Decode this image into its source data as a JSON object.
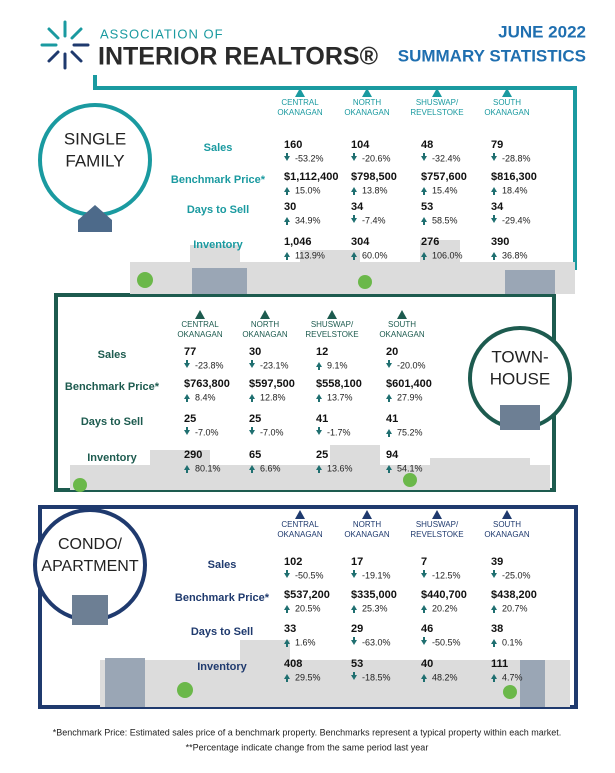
{
  "header": {
    "org_line1": "ASSOCIATION OF",
    "org_line2": "INTERIOR REALTORS®",
    "title_line1": "JUNE 2022",
    "title_line2": "SUMMARY STATISTICS"
  },
  "sections": [
    {
      "label": [
        "SINGLE",
        "FAMILY"
      ],
      "regions": [
        [
          "CENTRAL",
          "OKANAGAN"
        ],
        [
          "NORTH",
          "OKANAGAN"
        ],
        [
          "SHUSWAP/",
          "REVELSTOKE"
        ],
        [
          "SOUTH",
          "OKANAGAN"
        ]
      ],
      "rows": [
        {
          "name": "Sales",
          "cells": [
            {
              "value": "160",
              "change": "-53.2%"
            },
            {
              "value": "104",
              "change": "-20.6%"
            },
            {
              "value": "48",
              "change": "-32.4%"
            },
            {
              "value": "79",
              "change": "-28.8%"
            }
          ]
        },
        {
          "name": "Benchmark Price*",
          "cells": [
            {
              "value": "$1,112,400",
              "change": "15.0%"
            },
            {
              "value": "$798,500",
              "change": "13.8%"
            },
            {
              "value": "$757,600",
              "change": "15.4%"
            },
            {
              "value": "$816,300",
              "change": "18.4%"
            }
          ]
        },
        {
          "name": "Days to Sell",
          "cells": [
            {
              "value": "30",
              "change": "34.9%"
            },
            {
              "value": "34",
              "change": "-7.4%"
            },
            {
              "value": "53",
              "change": "58.5%"
            },
            {
              "value": "34",
              "change": "-29.4%"
            }
          ]
        },
        {
          "name": "Inventory",
          "cells": [
            {
              "value": "1,046",
              "change": "113.9%"
            },
            {
              "value": "304",
              "change": "60.0%"
            },
            {
              "value": "276",
              "change": "106.0%"
            },
            {
              "value": "390",
              "change": "36.8%"
            }
          ]
        }
      ]
    },
    {
      "label": [
        "TOWN-",
        "HOUSE"
      ],
      "regions": [
        [
          "CENTRAL",
          "OKANAGAN"
        ],
        [
          "NORTH",
          "OKANAGAN"
        ],
        [
          "SHUSWAP/",
          "REVELSTOKE"
        ],
        [
          "SOUTH",
          "OKANAGAN"
        ]
      ],
      "rows": [
        {
          "name": "Sales",
          "cells": [
            {
              "value": "77",
              "change": "-23.8%"
            },
            {
              "value": "30",
              "change": "-23.1%"
            },
            {
              "value": "12",
              "change": "9.1%"
            },
            {
              "value": "20",
              "change": "-20.0%"
            }
          ]
        },
        {
          "name": "Benchmark Price*",
          "cells": [
            {
              "value": "$763,800",
              "change": "8.4%"
            },
            {
              "value": "$597,500",
              "change": "12.8%"
            },
            {
              "value": "$558,100",
              "change": "13.7%"
            },
            {
              "value": "$601,400",
              "change": "27.9%"
            }
          ]
        },
        {
          "name": "Days to Sell",
          "cells": [
            {
              "value": "25",
              "change": "-7.0%"
            },
            {
              "value": "25",
              "change": "-7.0%"
            },
            {
              "value": "41",
              "change": "-1.7%"
            },
            {
              "value": "41",
              "change": "75.2%"
            }
          ]
        },
        {
          "name": "Inventory",
          "cells": [
            {
              "value": "290",
              "change": "80.1%"
            },
            {
              "value": "65",
              "change": "6.6%"
            },
            {
              "value": "25",
              "change": "13.6%"
            },
            {
              "value": "94",
              "change": "54.1%"
            }
          ]
        }
      ]
    },
    {
      "label": [
        "CONDO/",
        "APARTMENT"
      ],
      "regions": [
        [
          "CENTRAL",
          "OKANAGAN"
        ],
        [
          "NORTH",
          "OKANAGAN"
        ],
        [
          "SHUSWAP/",
          "REVELSTOKE"
        ],
        [
          "SOUTH",
          "OKANAGAN"
        ]
      ],
      "rows": [
        {
          "name": "Sales",
          "cells": [
            {
              "value": "102",
              "change": "-50.5%"
            },
            {
              "value": "17",
              "change": "-19.1%"
            },
            {
              "value": "7",
              "change": "-12.5%"
            },
            {
              "value": "39",
              "change": "-25.0%"
            }
          ]
        },
        {
          "name": "Benchmark Price*",
          "cells": [
            {
              "value": "$537,200",
              "change": "20.5%"
            },
            {
              "value": "$335,000",
              "change": "25.3%"
            },
            {
              "value": "$440,700",
              "change": "20.2%"
            },
            {
              "value": "$438,200",
              "change": "20.7%"
            }
          ]
        },
        {
          "name": "Days to Sell",
          "cells": [
            {
              "value": "33",
              "change": "1.6%"
            },
            {
              "value": "29",
              "change": "-63.0%"
            },
            {
              "value": "46",
              "change": "-50.5%"
            },
            {
              "value": "38",
              "change": "0.1%"
            }
          ]
        },
        {
          "name": "Inventory",
          "cells": [
            {
              "value": "408",
              "change": "29.5%"
            },
            {
              "value": "53",
              "change": "-18.5%"
            },
            {
              "value": "40",
              "change": "48.2%"
            },
            {
              "value": "111",
              "change": "4.7%"
            }
          ]
        }
      ]
    }
  ],
  "footnotes": [
    "*Benchmark Price: Estimated sales price of a benchmark property. Benchmarks represent a typical property within each market.",
    "**Percentage indicate change from the same period last year"
  ]
}
